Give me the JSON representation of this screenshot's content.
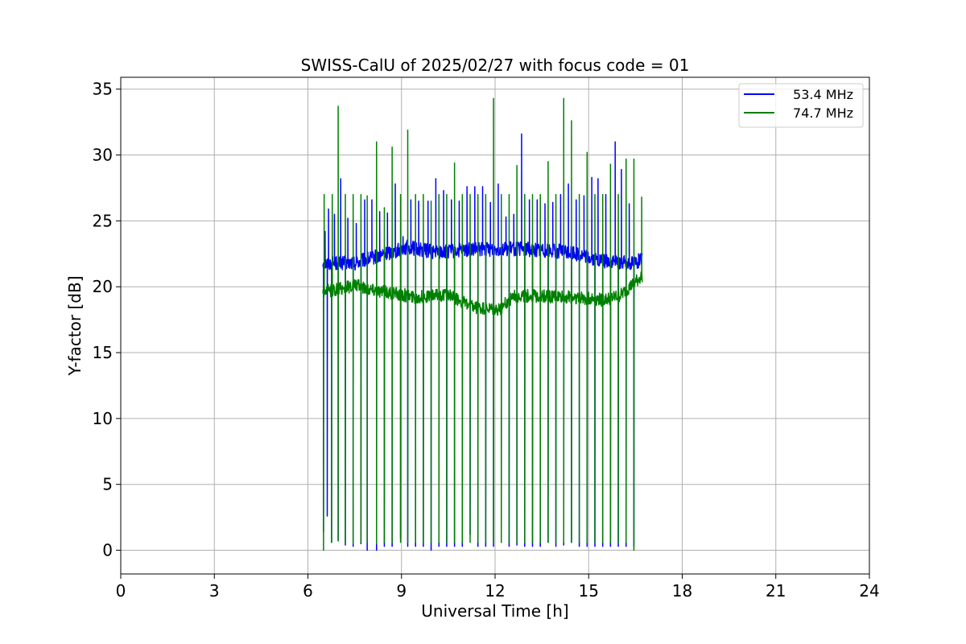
{
  "chart_data": {
    "type": "line",
    "title": "SWISS-CalU of 2025/02/27 with focus code = 01",
    "xlabel": "Universal Time [h]",
    "ylabel": "Y-factor [dB]",
    "xlim": [
      0,
      24
    ],
    "ylim": [
      -1.8,
      35.9
    ],
    "xticks": [
      0,
      3,
      6,
      9,
      12,
      15,
      18,
      21,
      24
    ],
    "yticks": [
      0,
      5,
      10,
      15,
      20,
      25,
      30,
      35
    ],
    "grid": true,
    "legend_position": "top-right",
    "series": [
      {
        "name": "53.4 MHz",
        "color": "#0000ff",
        "t_start": 6.48,
        "t_end": 16.72,
        "baseline": [
          [
            6.48,
            21.8
          ],
          [
            7.5,
            21.8
          ],
          [
            8.5,
            22.5
          ],
          [
            9.2,
            23.0
          ],
          [
            10.2,
            22.6
          ],
          [
            11.2,
            22.8
          ],
          [
            12.5,
            22.9
          ],
          [
            13.5,
            22.8
          ],
          [
            14.5,
            22.6
          ],
          [
            15.3,
            22.0
          ],
          [
            16.2,
            21.8
          ],
          [
            16.72,
            22.0
          ]
        ],
        "noise": 0.55,
        "calibration_dips": [
          6.5,
          6.62,
          6.76,
          6.97,
          7.2,
          7.45,
          7.7,
          7.9,
          8.2,
          8.45,
          8.7,
          8.97,
          9.2,
          9.45,
          9.7,
          9.95,
          10.2,
          10.45,
          10.7,
          10.95,
          11.2,
          11.45,
          11.7,
          11.95,
          12.2,
          12.45,
          12.7,
          12.95,
          13.2,
          13.45,
          13.7,
          13.95,
          14.2,
          14.45,
          14.7,
          14.95,
          15.2,
          15.45,
          15.7,
          15.95,
          16.2,
          16.45
        ],
        "dip_values": [
          1.4,
          2.6,
          0.6,
          0.8,
          0.4,
          0.3,
          0.5,
          0.0,
          0.0,
          0.3,
          0.3,
          0.9,
          0.3,
          0.3,
          0.3,
          0.0,
          0.3,
          0.3,
          0.3,
          0.3,
          1.2,
          0.3,
          0.3,
          0.3,
          0.6,
          0.3,
          0.4,
          0.3,
          0.3,
          0.3,
          0.6,
          0.3,
          0.4,
          0.6,
          0.3,
          0.3,
          0.3,
          0.3,
          0.3,
          0.3,
          0.3,
          0.3
        ],
        "peaks": [
          [
            6.55,
            24.2
          ],
          [
            6.66,
            25.9
          ],
          [
            6.85,
            25.5
          ],
          [
            7.05,
            28.2
          ],
          [
            7.28,
            25.2
          ],
          [
            7.55,
            24.8
          ],
          [
            7.82,
            26.6
          ],
          [
            8.05,
            26.6
          ],
          [
            8.3,
            25.7
          ],
          [
            8.55,
            25.6
          ],
          [
            8.8,
            27.8
          ],
          [
            9.05,
            23.8
          ],
          [
            9.3,
            26.6
          ],
          [
            9.55,
            26.5
          ],
          [
            9.85,
            26.5
          ],
          [
            10.1,
            28.2
          ],
          [
            10.35,
            27.3
          ],
          [
            10.6,
            26.6
          ],
          [
            10.85,
            26.5
          ],
          [
            11.1,
            27.6
          ],
          [
            11.35,
            27.6
          ],
          [
            11.6,
            27.6
          ],
          [
            11.85,
            26.4
          ],
          [
            12.1,
            27.8
          ],
          [
            12.35,
            25.3
          ],
          [
            12.6,
            25.5
          ],
          [
            12.85,
            31.6
          ],
          [
            13.1,
            26.6
          ],
          [
            13.35,
            26.6
          ],
          [
            13.6,
            26.3
          ],
          [
            13.85,
            26.4
          ],
          [
            14.1,
            27.0
          ],
          [
            14.35,
            27.8
          ],
          [
            14.6,
            26.6
          ],
          [
            14.85,
            26.9
          ],
          [
            15.1,
            28.3
          ],
          [
            15.3,
            28.2
          ],
          [
            15.55,
            27.0
          ],
          [
            15.85,
            31.0
          ],
          [
            16.05,
            28.9
          ],
          [
            16.3,
            26.3
          ],
          [
            16.6,
            22.5
          ]
        ]
      },
      {
        "name": "74.7 MHz",
        "color": "#008000",
        "t_start": 6.48,
        "t_end": 16.72,
        "baseline": [
          [
            6.48,
            19.6
          ],
          [
            7.5,
            20.1
          ],
          [
            8.5,
            19.6
          ],
          [
            9.5,
            19.2
          ],
          [
            10.5,
            19.4
          ],
          [
            11.3,
            18.4
          ],
          [
            12.1,
            18.2
          ],
          [
            12.6,
            19.3
          ],
          [
            13.5,
            19.3
          ],
          [
            14.5,
            19.2
          ],
          [
            15.5,
            19.0
          ],
          [
            16.0,
            19.3
          ],
          [
            16.72,
            20.8
          ]
        ],
        "noise": 0.5,
        "calibration_dips": [
          6.5,
          6.76,
          6.97,
          7.2,
          7.45,
          7.7,
          7.9,
          8.2,
          8.45,
          8.7,
          8.97,
          9.2,
          9.45,
          9.7,
          9.95,
          10.2,
          10.45,
          10.7,
          10.95,
          11.2,
          11.45,
          11.7,
          11.95,
          12.2,
          12.45,
          12.7,
          12.95,
          13.2,
          13.45,
          13.7,
          13.95,
          14.2,
          14.45,
          14.7,
          14.95,
          15.2,
          15.45,
          15.7,
          15.95,
          16.2,
          16.45
        ],
        "dip_values": [
          0.0,
          0.6,
          0.7,
          0.6,
          0.5,
          0.6,
          0.6,
          0.5,
          0.6,
          0.6,
          0.6,
          0.6,
          0.6,
          0.6,
          0.6,
          0.6,
          0.6,
          0.6,
          0.6,
          0.6,
          0.6,
          0.6,
          0.6,
          0.6,
          0.6,
          0.6,
          0.6,
          0.6,
          0.6,
          0.6,
          0.6,
          0.6,
          0.6,
          0.6,
          0.6,
          0.6,
          0.6,
          0.6,
          0.6,
          0.6,
          0.0
        ],
        "peaks": [
          [
            6.52,
            27.0
          ],
          [
            6.78,
            27.0
          ],
          [
            6.97,
            33.7
          ],
          [
            7.2,
            27.0
          ],
          [
            7.45,
            27.0
          ],
          [
            7.7,
            27.0
          ],
          [
            7.9,
            26.9
          ],
          [
            8.2,
            31.0
          ],
          [
            8.45,
            26.0
          ],
          [
            8.7,
            30.6
          ],
          [
            8.97,
            27.0
          ],
          [
            9.2,
            31.9
          ],
          [
            9.45,
            27.0
          ],
          [
            9.7,
            27.0
          ],
          [
            9.95,
            26.5
          ],
          [
            10.2,
            27.0
          ],
          [
            10.45,
            27.0
          ],
          [
            10.7,
            29.4
          ],
          [
            10.95,
            27.0
          ],
          [
            11.2,
            27.0
          ],
          [
            11.45,
            27.0
          ],
          [
            11.7,
            27.0
          ],
          [
            11.95,
            34.3
          ],
          [
            12.2,
            27.0
          ],
          [
            12.45,
            27.0
          ],
          [
            12.7,
            29.2
          ],
          [
            12.95,
            27.0
          ],
          [
            13.2,
            27.0
          ],
          [
            13.45,
            27.0
          ],
          [
            13.7,
            29.5
          ],
          [
            13.95,
            27.0
          ],
          [
            14.2,
            34.3
          ],
          [
            14.45,
            32.6
          ],
          [
            14.7,
            27.0
          ],
          [
            14.95,
            30.2
          ],
          [
            15.2,
            27.0
          ],
          [
            15.45,
            27.0
          ],
          [
            15.7,
            29.3
          ],
          [
            15.95,
            27.0
          ],
          [
            16.2,
            29.7
          ],
          [
            16.45,
            29.7
          ],
          [
            16.7,
            26.8
          ]
        ]
      }
    ]
  }
}
